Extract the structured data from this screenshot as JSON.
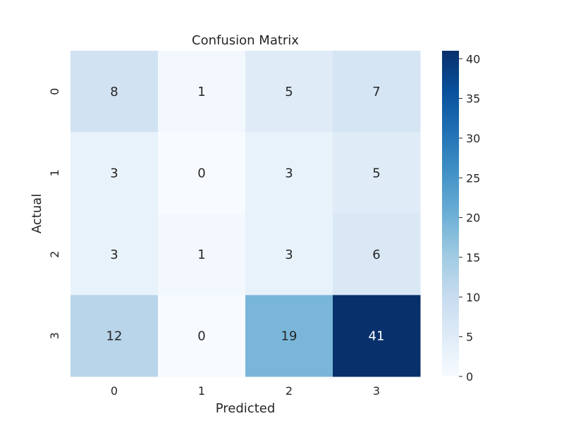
{
  "chart_data": {
    "type": "heatmap",
    "title": "Confusion Matrix",
    "xlabel": "Predicted",
    "ylabel": "Actual",
    "x_categories": [
      "0",
      "1",
      "2",
      "3"
    ],
    "y_categories": [
      "0",
      "1",
      "2",
      "3"
    ],
    "values": [
      [
        8,
        1,
        5,
        7
      ],
      [
        3,
        0,
        3,
        5
      ],
      [
        3,
        1,
        3,
        6
      ],
      [
        12,
        0,
        19,
        41
      ]
    ],
    "colorbar": {
      "min": 0,
      "max": 41,
      "ticks": [
        0,
        5,
        10,
        15,
        20,
        25,
        30,
        35,
        40
      ]
    },
    "colormap": "Blues",
    "colors": {
      "low": "#f7fbff",
      "high": "#08306b",
      "text_dark": "#262626",
      "text_light": "#ffffff"
    }
  }
}
